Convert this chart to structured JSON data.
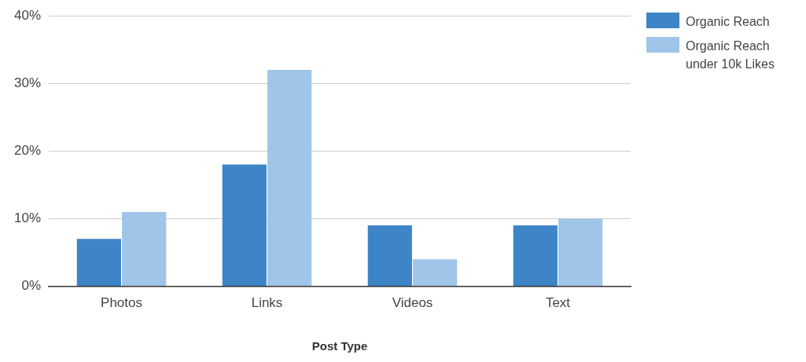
{
  "chart_data": {
    "type": "bar",
    "xlabel": "Post Type",
    "categories": [
      "Photos",
      "Links",
      "Videos",
      "Text"
    ],
    "series": [
      {
        "name": "Organic Reach",
        "color": "#3d85c6",
        "values": [
          7,
          18,
          9,
          9
        ]
      },
      {
        "name": "Organic Reach under 10k Likes",
        "color": "#9fc5e8",
        "values": [
          11,
          32,
          4,
          10
        ]
      }
    ],
    "ylim": [
      0,
      40
    ],
    "yticks": [
      {
        "value": 0,
        "label": "0%"
      },
      {
        "value": 10,
        "label": "10%"
      },
      {
        "value": 20,
        "label": "20%"
      },
      {
        "value": 30,
        "label": "30%"
      },
      {
        "value": 40,
        "label": "40%"
      }
    ],
    "grid": "y",
    "legend": "right"
  }
}
